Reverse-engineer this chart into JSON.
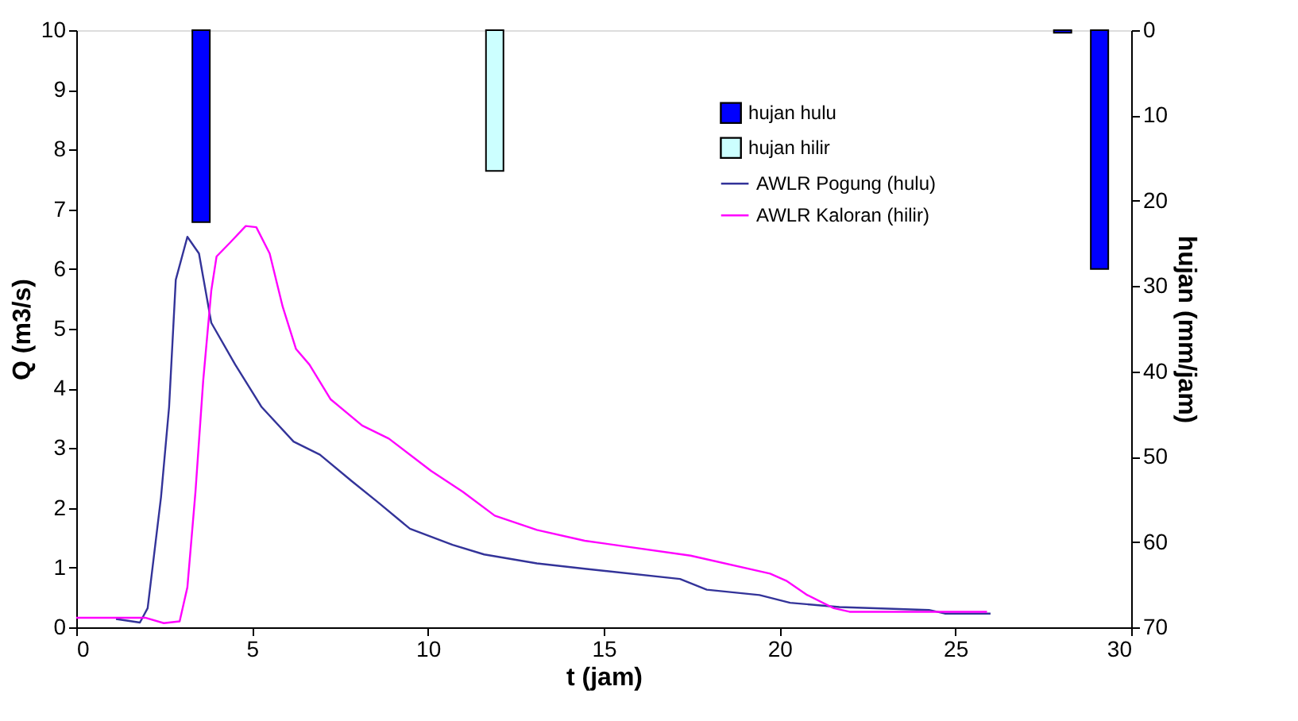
{
  "chart_data": {
    "type": "line",
    "xlabel": "t (jam)",
    "ylabel": "Q (m3/s)",
    "y2label": "hujan (mm/jam)",
    "xlim": [
      0,
      30
    ],
    "xticks": [
      0,
      5,
      10,
      15,
      20,
      25,
      30
    ],
    "ylim": [
      0,
      10
    ],
    "yticks": [
      0,
      1,
      2,
      3,
      4,
      5,
      6,
      7,
      8,
      9,
      10
    ],
    "y2lim": [
      70,
      0
    ],
    "y2ticks": [
      0,
      10,
      20,
      30,
      40,
      50,
      60,
      70
    ],
    "grid": false,
    "legend": "top right",
    "line_style": "solid",
    "marker": "none",
    "series": [
      {
        "name": "hujan hulu",
        "type": "bar",
        "axis": "y2",
        "color": "#0000ff",
        "x": [
          3.55,
          28.05,
          29.1
        ],
        "values": [
          22.5,
          0.3,
          28
        ]
      },
      {
        "name": "hujan hilir",
        "type": "bar",
        "axis": "y2",
        "color": "#ccffff",
        "x": [
          11.9
        ],
        "values": [
          16.5
        ]
      },
      {
        "name": "AWLR Pogung (hulu)",
        "axis": "y",
        "color": "#333399",
        "x": [
          1.13,
          1.81,
          2.03,
          2.41,
          2.64,
          2.83,
          3.16,
          3.49,
          3.84,
          4.52,
          5.27,
          6.18,
          6.93,
          7.83,
          8.59,
          9.49,
          10.7,
          11.6,
          13.1,
          14.46,
          17.17,
          17.93,
          19.43,
          20.3,
          21.7,
          24.25,
          24.7,
          26.0
        ],
        "values": [
          0.14,
          0.08,
          0.32,
          2.18,
          3.69,
          5.82,
          6.54,
          6.26,
          5.1,
          4.4,
          3.69,
          3.11,
          2.89,
          2.45,
          2.09,
          1.65,
          1.38,
          1.22,
          1.07,
          0.98,
          0.81,
          0.63,
          0.54,
          0.41,
          0.34,
          0.29,
          0.23,
          0.23
        ]
      },
      {
        "name": "AWLR Kaloran (hilir)",
        "axis": "y",
        "color": "#ff00ff",
        "x": [
          0,
          1.96,
          2.49,
          2.94,
          3.16,
          3.39,
          3.61,
          3.84,
          3.99,
          4.37,
          4.82,
          5.12,
          5.5,
          5.87,
          6.25,
          6.63,
          7.23,
          8.13,
          8.89,
          10.09,
          10.99,
          11.9,
          13.1,
          14.46,
          17.47,
          19.73,
          20.19,
          20.79,
          21.54,
          21.99,
          25.9
        ],
        "values": [
          0.16,
          0.16,
          0.07,
          0.1,
          0.67,
          2.27,
          4.13,
          5.64,
          6.21,
          6.44,
          6.72,
          6.7,
          6.26,
          5.37,
          4.66,
          4.4,
          3.82,
          3.38,
          3.16,
          2.62,
          2.27,
          1.87,
          1.63,
          1.45,
          1.2,
          0.9,
          0.78,
          0.54,
          0.32,
          0.26,
          0.26
        ]
      }
    ]
  }
}
